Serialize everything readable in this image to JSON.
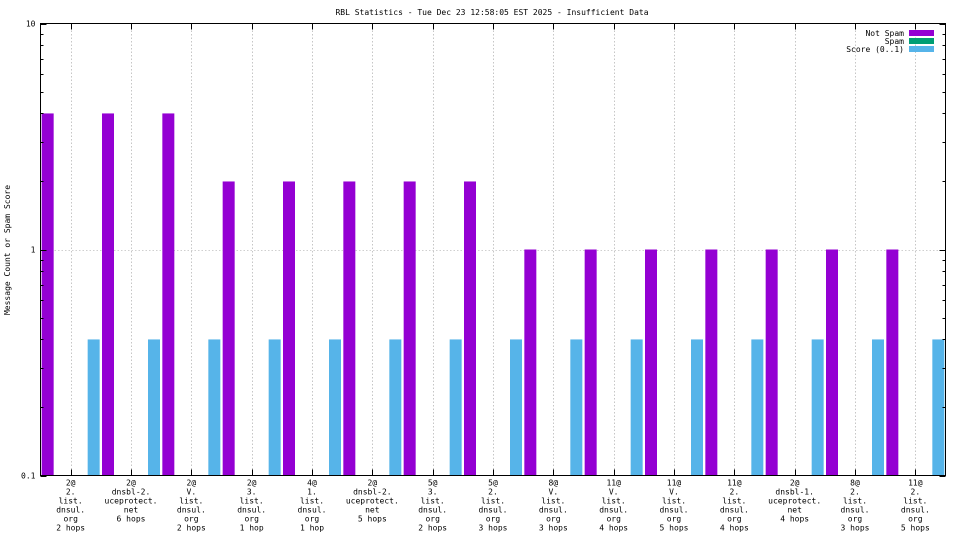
{
  "chart_data": {
    "type": "bar",
    "title": "RBL Statistics - Tue Dec 23 12:58:05 EST 2025 - Insufficient Data",
    "xlabel": "",
    "ylabel": "Message Count or Spam Score",
    "yscale": "log",
    "ylim": [
      0.1,
      10
    ],
    "yticks": [
      "0.1",
      "1",
      "10"
    ],
    "grid": true,
    "legend_position": "top-right",
    "categories": [
      [
        "2@",
        "2.",
        "list.",
        "dnsul.",
        "org",
        "2 hops"
      ],
      [
        "2@",
        "dnsbl-2.",
        "uceprotect.",
        "net",
        "6 hops"
      ],
      [
        "2@",
        "V.",
        "list.",
        "dnsul.",
        "org",
        "2 hops"
      ],
      [
        "2@",
        "3.",
        "list.",
        "dnsul.",
        "org",
        "1 hop"
      ],
      [
        "4@",
        "1.",
        "list.",
        "dnsul.",
        "org",
        "1 hop"
      ],
      [
        "2@",
        "dnsbl-2.",
        "uceprotect.",
        "net",
        "5 hops"
      ],
      [
        "5@",
        "3.",
        "list.",
        "dnsul.",
        "org",
        "2 hops"
      ],
      [
        "5@",
        "2.",
        "list.",
        "dnsul.",
        "org",
        "3 hops"
      ],
      [
        "8@",
        "V.",
        "list.",
        "dnsul.",
        "org",
        "3 hops"
      ],
      [
        "11@",
        "V.",
        "list.",
        "dnsul.",
        "org",
        "4 hops"
      ],
      [
        "11@",
        "V.",
        "list.",
        "dnsul.",
        "org",
        "5 hops"
      ],
      [
        "11@",
        "2.",
        "list.",
        "dnsul.",
        "org",
        "4 hops"
      ],
      [
        "2@",
        "dnsbl-1.",
        "uceprotect.",
        "net",
        "4 hops"
      ],
      [
        "8@",
        "2.",
        "list.",
        "dnsul.",
        "org",
        "3 hops"
      ],
      [
        "11@",
        "2.",
        "list.",
        "dnsul.",
        "org",
        "5 hops"
      ]
    ],
    "series": [
      {
        "name": "Not Spam",
        "color": "#9400d3",
        "values": [
          4,
          4,
          4,
          2,
          2,
          2,
          2,
          2,
          1,
          1,
          1,
          1,
          1,
          1,
          1
        ]
      },
      {
        "name": "Spam",
        "color": "#009e73",
        "values": [
          0,
          0,
          0,
          0,
          0,
          0,
          0,
          0,
          0,
          0,
          0,
          0,
          0,
          0,
          0
        ]
      },
      {
        "name": "Score (0..1)",
        "color": "#56b4e9",
        "values": [
          0.4,
          0.4,
          0.4,
          0.4,
          0.4,
          0.4,
          0.4,
          0.4,
          0.4,
          0.4,
          0.4,
          0.4,
          0.4,
          0.4,
          0.4
        ]
      }
    ]
  }
}
